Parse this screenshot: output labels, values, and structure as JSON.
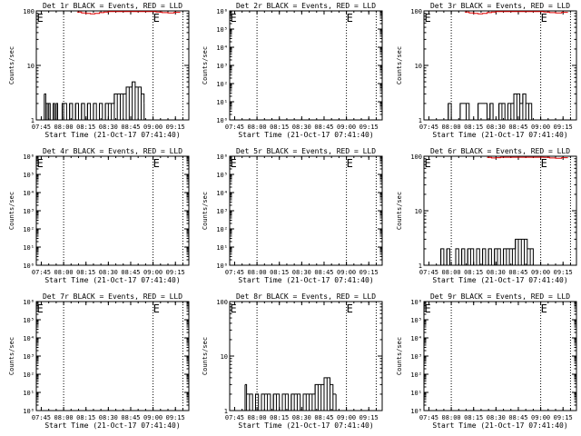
{
  "colors": {
    "events": "#000000",
    "lld": "#dd0000",
    "background": "#ffffff"
  },
  "chart_data": [
    {
      "type": "line",
      "title": "Det 1r BLACK = Events, RED = LLD",
      "xlabel": "Start Time (21-Oct-17 07:41:40)",
      "ylabel": "Counts/sec",
      "yscale": "log",
      "ylim": [
        1,
        100
      ],
      "yticks": [
        "1",
        "10",
        "100"
      ],
      "xticks": [
        "07:45",
        "08:00",
        "08:15",
        "08:30",
        "08:45",
        "09:00",
        "09:15"
      ],
      "xrange": [
        "07:41:40",
        "09:24:00"
      ],
      "dotted_lines": [
        "08:00",
        "09:00",
        "09:20"
      ],
      "markers": [
        {
          "label": "E",
          "at": "07:42"
        },
        {
          "label": "E",
          "at": "09:00"
        }
      ],
      "series": [
        {
          "color": "black",
          "x": [
            "07:47",
            "07:48",
            "07:49",
            "07:50",
            "07:51",
            "07:52",
            "07:53",
            "07:54",
            "07:55",
            "07:56",
            "07:57",
            "07:58",
            "07:59",
            "08:00",
            "08:02",
            "08:04",
            "08:06",
            "08:08",
            "08:10",
            "08:12",
            "08:14",
            "08:16",
            "08:18",
            "08:20",
            "08:22",
            "08:24",
            "08:26",
            "08:28",
            "08:30",
            "08:32",
            "08:34",
            "08:36",
            "08:38",
            "08:40",
            "08:42",
            "08:44",
            "08:46",
            "08:48",
            "08:50",
            "08:52",
            "08:54"
          ],
          "y": [
            3,
            2,
            2,
            2,
            1,
            1,
            2,
            1,
            2,
            1,
            1,
            1,
            2,
            2,
            1,
            2,
            1,
            2,
            1,
            2,
            1,
            2,
            1,
            2,
            1,
            2,
            1,
            2,
            2,
            2,
            3,
            3,
            3,
            3,
            4,
            4,
            5,
            4,
            4,
            3,
            2
          ]
        },
        {
          "color": "red",
          "x": [
            "08:09",
            "08:12",
            "08:15",
            "08:18",
            "08:21",
            "08:24",
            "08:27",
            "08:30",
            "09:02",
            "09:06",
            "09:10",
            "09:14",
            "09:18"
          ],
          "y": [
            95,
            92,
            90,
            88,
            90,
            93,
            95,
            97,
            95,
            93,
            92,
            94,
            96
          ]
        }
      ]
    },
    {
      "type": "line",
      "title": "Det 2r BLACK = Events, RED = LLD",
      "xlabel": "Start Time (21-Oct-17 07:41:40)",
      "ylabel": "Counts/sec",
      "yscale": "log",
      "ylim": [
        1,
        1000000
      ],
      "yticks": [
        "10⁰",
        "10¹",
        "10²",
        "10³",
        "10⁴",
        "10⁵",
        "10⁶"
      ],
      "xticks": [
        "07:45",
        "08:00",
        "08:15",
        "08:30",
        "08:45",
        "09:00",
        "09:15"
      ],
      "xrange": [
        "07:41:40",
        "09:24:00"
      ],
      "dotted_lines": [
        "08:00",
        "09:00",
        "09:20"
      ],
      "markers": [
        {
          "label": "E",
          "at": "07:42"
        },
        {
          "label": "E",
          "at": "09:00"
        }
      ],
      "series": []
    },
    {
      "type": "line",
      "title": "Det 3r BLACK = Events, RED = LLD",
      "xlabel": "Start Time (21-Oct-17 07:41:40)",
      "ylabel": "Counts/sec",
      "yscale": "log",
      "ylim": [
        1,
        100
      ],
      "yticks": [
        "1",
        "10",
        "100"
      ],
      "xticks": [
        "07:45",
        "08:00",
        "08:15",
        "08:30",
        "08:45",
        "09:00",
        "09:15"
      ],
      "xrange": [
        "07:41:40",
        "09:24:00"
      ],
      "dotted_lines": [
        "08:00",
        "09:00",
        "09:20"
      ],
      "markers": [
        {
          "label": "E",
          "at": "07:42"
        },
        {
          "label": "E",
          "at": "09:00"
        }
      ],
      "series": [
        {
          "color": "black",
          "x": [
            "07:56",
            "07:58",
            "08:00",
            "08:04",
            "08:06",
            "08:10",
            "08:12",
            "08:16",
            "08:18",
            "08:24",
            "08:26",
            "08:28",
            "08:32",
            "08:34",
            "08:36",
            "08:38",
            "08:40",
            "08:42",
            "08:44",
            "08:46",
            "08:48",
            "08:50",
            "08:52",
            "08:54"
          ],
          "y": [
            1,
            2,
            1,
            1,
            2,
            2,
            1,
            1,
            2,
            1,
            2,
            1,
            2,
            2,
            1,
            2,
            2,
            3,
            3,
            2,
            3,
            2,
            2,
            1
          ]
        },
        {
          "color": "red",
          "x": [
            "08:09",
            "08:12",
            "08:15",
            "08:18",
            "08:21",
            "08:24",
            "08:27",
            "08:30",
            "09:02",
            "09:06",
            "09:10",
            "09:14",
            "09:18"
          ],
          "y": [
            95,
            92,
            90,
            88,
            90,
            93,
            95,
            97,
            95,
            93,
            92,
            94,
            96
          ]
        }
      ]
    },
    {
      "type": "line",
      "title": "Det 4r BLACK = Events, RED = LLD",
      "xlabel": "Start Time (21-Oct-17 07:41:40)",
      "ylabel": "Counts/sec",
      "yscale": "log",
      "ylim": [
        1,
        1000000
      ],
      "yticks": [
        "10⁰",
        "10¹",
        "10²",
        "10³",
        "10⁴",
        "10⁵",
        "10⁶"
      ],
      "xticks": [
        "07:45",
        "08:00",
        "08:15",
        "08:30",
        "08:45",
        "09:00",
        "09:15"
      ],
      "xrange": [
        "07:41:40",
        "09:24:00"
      ],
      "dotted_lines": [
        "08:00",
        "09:00",
        "09:20"
      ],
      "markers": [
        {
          "label": "E",
          "at": "07:42"
        },
        {
          "label": "E",
          "at": "09:00"
        }
      ],
      "series": []
    },
    {
      "type": "line",
      "title": "Det 5r BLACK = Events, RED = LLD",
      "xlabel": "Start Time (21-Oct-17 07:41:40)",
      "ylabel": "Counts/sec",
      "yscale": "log",
      "ylim": [
        1,
        1000000
      ],
      "yticks": [
        "10⁰",
        "10¹",
        "10²",
        "10³",
        "10⁴",
        "10⁵",
        "10⁶"
      ],
      "xticks": [
        "07:45",
        "08:00",
        "08:15",
        "08:30",
        "08:45",
        "09:00",
        "09:15"
      ],
      "xrange": [
        "07:41:40",
        "09:24:00"
      ],
      "dotted_lines": [
        "08:00",
        "09:00",
        "09:20"
      ],
      "markers": [
        {
          "label": "E",
          "at": "07:42"
        },
        {
          "label": "E",
          "at": "09:00"
        }
      ],
      "series": []
    },
    {
      "type": "line",
      "title": "Det 6r BLACK = Events, RED = LLD",
      "xlabel": "Start Time (21-Oct-17 07:41:40)",
      "ylabel": "Counts/sec",
      "yscale": "log",
      "ylim": [
        1,
        100
      ],
      "yticks": [
        "1",
        "10",
        "100"
      ],
      "xticks": [
        "07:45",
        "08:00",
        "08:15",
        "08:30",
        "08:45",
        "09:00",
        "09:15"
      ],
      "xrange": [
        "07:41:40",
        "09:24:00"
      ],
      "dotted_lines": [
        "08:00",
        "09:00",
        "09:20"
      ],
      "markers": [
        {
          "label": "E",
          "at": "07:42"
        },
        {
          "label": "E",
          "at": "09:00"
        }
      ],
      "series": [
        {
          "color": "black",
          "x": [
            "07:51",
            "07:53",
            "07:55",
            "07:57",
            "07:59",
            "08:01",
            "08:03",
            "08:05",
            "08:07",
            "08:09",
            "08:11",
            "08:13",
            "08:15",
            "08:17",
            "08:19",
            "08:21",
            "08:23",
            "08:25",
            "08:27",
            "08:29",
            "08:31",
            "08:33",
            "08:35",
            "08:37",
            "08:39",
            "08:41",
            "08:43",
            "08:45",
            "08:47",
            "08:49",
            "08:51",
            "08:53",
            "08:55"
          ],
          "y": [
            1,
            2,
            1,
            2,
            1,
            1,
            2,
            1,
            2,
            1,
            2,
            2,
            1,
            2,
            1,
            2,
            1,
            2,
            1,
            2,
            2,
            1,
            2,
            2,
            2,
            2,
            3,
            3,
            3,
            3,
            2,
            2,
            1
          ]
        },
        {
          "color": "red",
          "x": [
            "08:24",
            "08:27",
            "08:30",
            "08:33",
            "09:02",
            "09:06",
            "09:10",
            "09:14",
            "09:18"
          ],
          "y": [
            95,
            93,
            94,
            96,
            95,
            93,
            92,
            94,
            96
          ]
        }
      ]
    },
    {
      "type": "line",
      "title": "Det 7r BLACK = Events, RED = LLD",
      "xlabel": "Start Time (21-Oct-17 07:41:40)",
      "ylabel": "Counts/sec",
      "yscale": "log",
      "ylim": [
        1,
        1000000
      ],
      "yticks": [
        "10⁰",
        "10¹",
        "10²",
        "10³",
        "10⁴",
        "10⁵",
        "10⁶"
      ],
      "xticks": [
        "07:45",
        "08:00",
        "08:15",
        "08:30",
        "08:45",
        "09:00",
        "09:15"
      ],
      "xrange": [
        "07:41:40",
        "09:24:00"
      ],
      "dotted_lines": [
        "08:00",
        "09:00",
        "09:20"
      ],
      "markers": [
        {
          "label": "E",
          "at": "07:42"
        },
        {
          "label": "E",
          "at": "09:00"
        }
      ],
      "series": []
    },
    {
      "type": "line",
      "title": "Det 8r BLACK = Events, RED = LLD",
      "xlabel": "Start Time (21-Oct-17 07:41:40)",
      "ylabel": "Counts/sec",
      "yscale": "log",
      "ylim": [
        1,
        100
      ],
      "yticks": [
        "1",
        "10",
        "100"
      ],
      "xticks": [
        "07:45",
        "08:00",
        "08:15",
        "08:30",
        "08:45",
        "09:00",
        "09:15"
      ],
      "xrange": [
        "07:41:40",
        "09:24:00"
      ],
      "dotted_lines": [
        "08:00",
        "09:00",
        "09:20"
      ],
      "markers": [
        {
          "label": "E",
          "at": "07:42"
        },
        {
          "label": "E",
          "at": "09:00"
        }
      ],
      "series": [
        {
          "color": "black",
          "x": [
            "07:52",
            "07:53",
            "07:55",
            "07:57",
            "07:59",
            "08:01",
            "08:03",
            "08:05",
            "08:07",
            "08:09",
            "08:11",
            "08:13",
            "08:15",
            "08:17",
            "08:19",
            "08:21",
            "08:23",
            "08:25",
            "08:27",
            "08:29",
            "08:31",
            "08:33",
            "08:35",
            "08:37",
            "08:39",
            "08:41",
            "08:43",
            "08:45",
            "08:47",
            "08:49",
            "08:51",
            "08:53"
          ],
          "y": [
            3,
            2,
            2,
            1,
            2,
            1,
            2,
            2,
            2,
            1,
            2,
            2,
            1,
            2,
            2,
            1,
            2,
            2,
            2,
            1,
            2,
            2,
            2,
            2,
            3,
            3,
            3,
            4,
            4,
            3,
            2,
            2
          ]
        }
      ]
    },
    {
      "type": "line",
      "title": "Det 9r BLACK = Events, RED = LLD",
      "xlabel": "Start Time (21-Oct-17 07:41:40)",
      "ylabel": "Counts/sec",
      "yscale": "log",
      "ylim": [
        1,
        1000000
      ],
      "yticks": [
        "10⁰",
        "10¹",
        "10²",
        "10³",
        "10⁴",
        "10⁵",
        "10⁶"
      ],
      "xticks": [
        "07:45",
        "08:00",
        "08:15",
        "08:30",
        "08:45",
        "09:00",
        "09:15"
      ],
      "xrange": [
        "07:41:40",
        "09:24:00"
      ],
      "dotted_lines": [
        "08:00",
        "09:00",
        "09:20"
      ],
      "markers": [
        {
          "label": "E",
          "at": "07:42"
        },
        {
          "label": "E",
          "at": "09:00"
        }
      ],
      "series": []
    }
  ]
}
